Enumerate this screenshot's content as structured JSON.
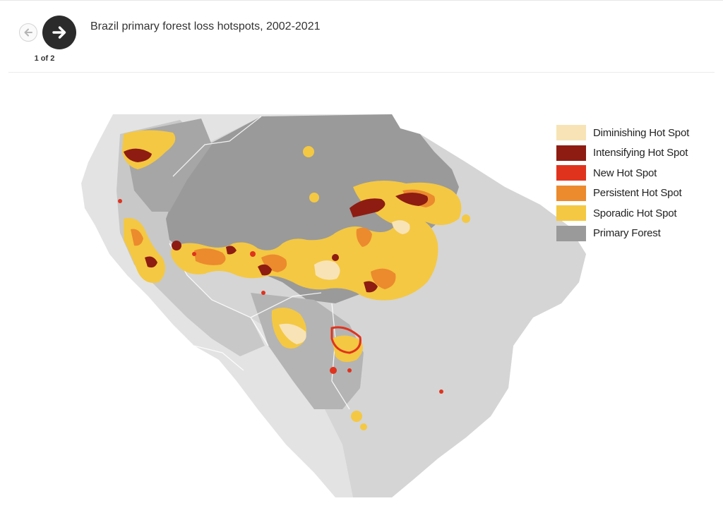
{
  "header": {
    "title": "Brazil primary forest loss hotspots, 2002-2021",
    "counter": "1 of 2"
  },
  "legend": {
    "items": [
      {
        "label": "Diminishing Hot Spot",
        "color": "#f7e3b5"
      },
      {
        "label": "Intensifying Hot Spot",
        "color": "#8e1c12"
      },
      {
        "label": "New Hot Spot",
        "color": "#e0331e"
      },
      {
        "label": "Persistent Hot Spot",
        "color": "#ec8a2e"
      },
      {
        "label": "Sporadic Hot Spot",
        "color": "#f4c842"
      },
      {
        "label": "Primary Forest",
        "color": "#9a9a9a"
      }
    ]
  },
  "icons": {
    "prev": "arrow-left-icon",
    "next": "arrow-right-icon"
  }
}
